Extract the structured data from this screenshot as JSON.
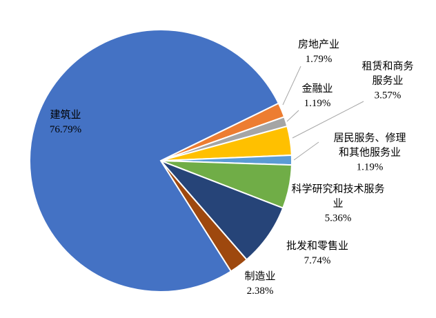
{
  "chart_data": {
    "type": "pie",
    "categories": [
      "房地产业",
      "金融业",
      "租赁和商务服务业",
      "居民服务、修理和其他服务业",
      "科学研究和技术服务业",
      "批发和零售业",
      "制造业",
      "建筑业"
    ],
    "values": [
      1.79,
      1.19,
      3.57,
      1.19,
      5.36,
      7.74,
      2.38,
      76.79
    ],
    "value_labels": [
      "1.79%",
      "1.19%",
      "3.57%",
      "1.19%",
      "5.36%",
      "7.74%",
      "2.38%",
      "76.79%"
    ],
    "colors": [
      "#ED7D31",
      "#A5A5A5",
      "#FFC000",
      "#5B9BD5",
      "#70AD47",
      "#264478",
      "#9E480E",
      "#4472C4"
    ]
  }
}
